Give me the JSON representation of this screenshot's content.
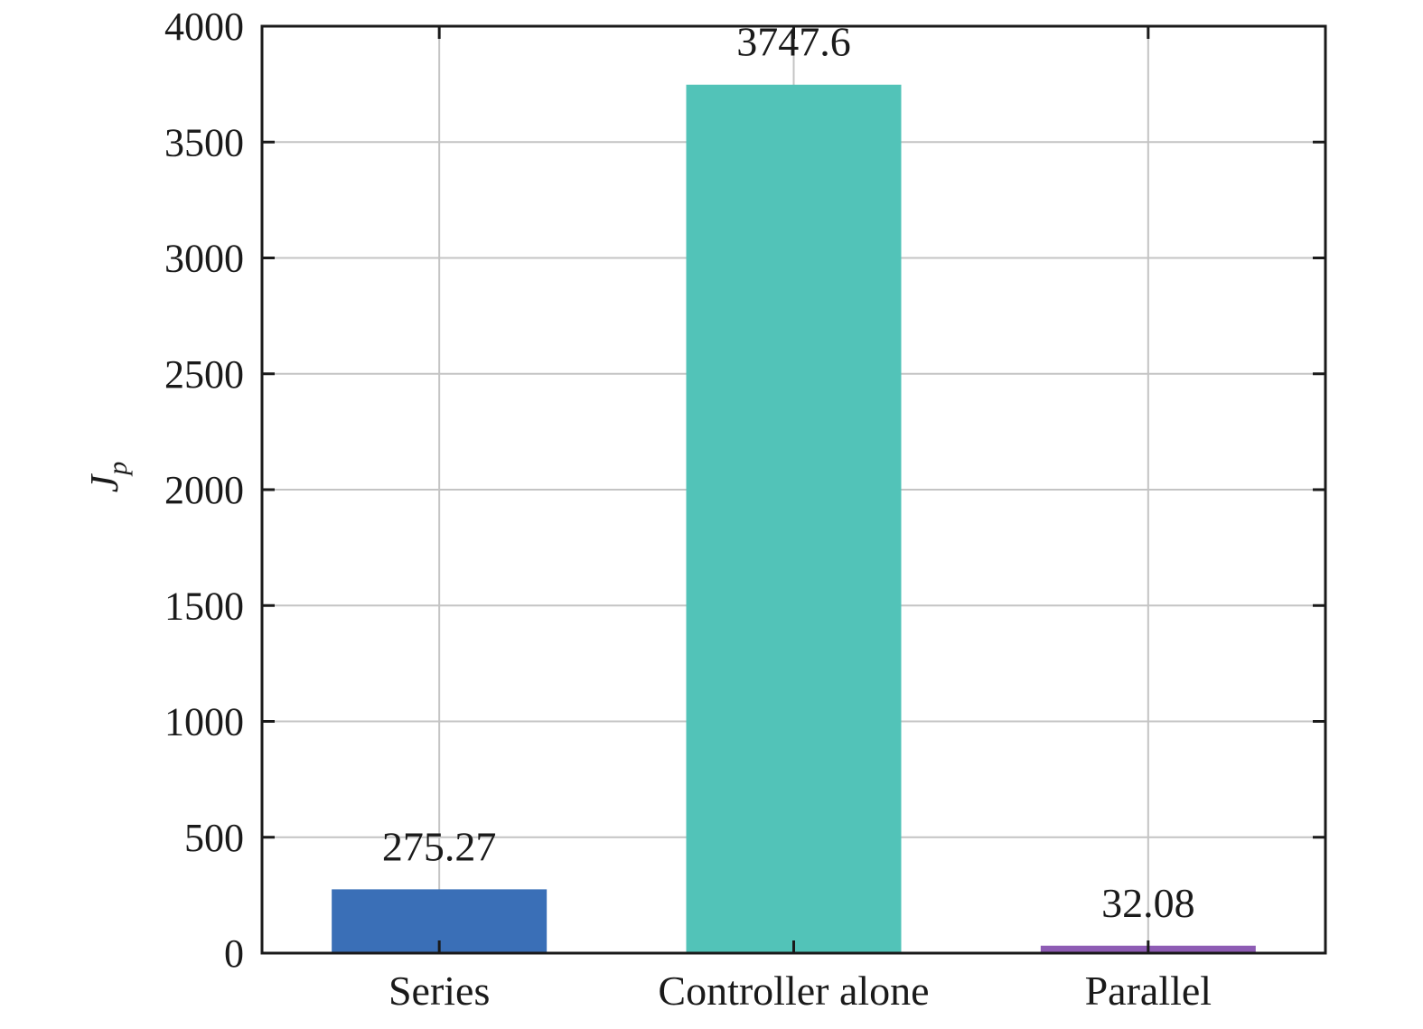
{
  "chart_data": {
    "type": "bar",
    "categories": [
      "Series",
      "Controller alone",
      "Parallel"
    ],
    "values": [
      275.27,
      3747.6,
      32.08
    ],
    "value_labels": [
      "275.27",
      "3747.6",
      "32.08"
    ],
    "colors": [
      "#3a6fb7",
      "#52c3b8",
      "#8e5cb4"
    ],
    "title": "",
    "xlabel": "",
    "ylabel": "J",
    "ylabel_subscript": "p",
    "ylim": [
      0,
      4000
    ],
    "yticks": [
      0,
      500,
      1000,
      1500,
      2000,
      2500,
      3000,
      3500,
      4000
    ],
    "ytick_labels": [
      "0",
      "500",
      "1000",
      "1500",
      "2000",
      "2500",
      "3000",
      "3500",
      "4000"
    ],
    "grid": true,
    "legend": "none"
  }
}
